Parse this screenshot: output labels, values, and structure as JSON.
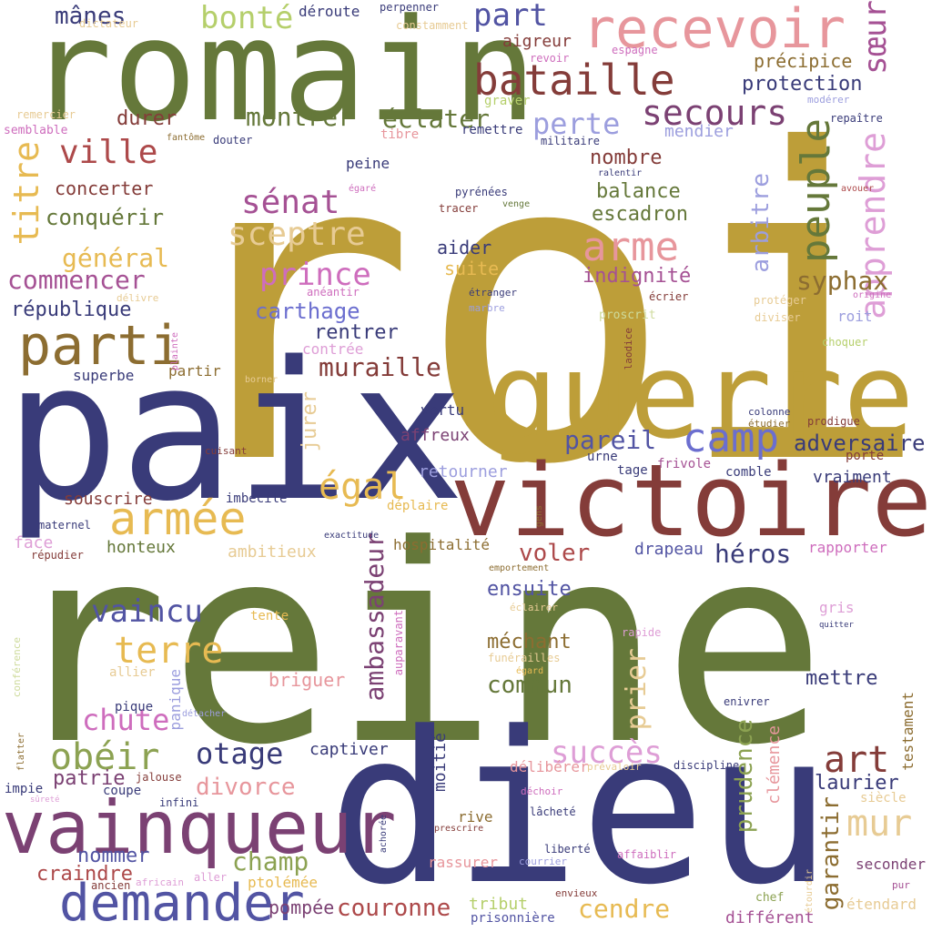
{
  "palette": {
    "olive_green": "#65783a",
    "mustard": "#bd9e39",
    "navy": "#393b79",
    "maroon": "#843c39",
    "indigo": "#5254a3",
    "periwinkle": "#6b6ecf",
    "lavender": "#9c9ede",
    "sand": "#e7cb94",
    "gold": "#e7ba52",
    "pea": "#8ca252",
    "lime": "#b5cf6b",
    "pale_lime": "#cedb9c",
    "brown": "#8c6d31",
    "red": "#ad494a",
    "rose": "#e7969c",
    "plum": "#7b4173",
    "magenta": "#a55194",
    "orchid": "#ce6dbd",
    "pink": "#de9ed6"
  },
  "words": [
    {
      "text": "roi",
      "color": "#bd9e39"
    },
    {
      "text": "reine",
      "color": "#65783a"
    },
    {
      "text": "paix",
      "color": "#393b79"
    },
    {
      "text": "dieu",
      "color": "#393b79"
    },
    {
      "text": "romain",
      "color": "#65783a"
    },
    {
      "text": "guerre",
      "color": "#bd9e39"
    },
    {
      "text": "victoire",
      "color": "#843c39"
    },
    {
      "text": "vainqueur",
      "color": "#7b4173"
    },
    {
      "text": "demander",
      "color": "#5254a3"
    },
    {
      "text": "recevoir",
      "color": "#e7969c"
    },
    {
      "text": "bataille",
      "color": "#843c39"
    },
    {
      "text": "parti",
      "color": "#8c6d31"
    },
    {
      "text": "armée",
      "color": "#e7ba52"
    },
    {
      "text": "camp",
      "color": "#6b6ecf"
    },
    {
      "text": "arme",
      "color": "#e7969c"
    },
    {
      "text": "peuple",
      "color": "#65783a"
    },
    {
      "text": "apprendre",
      "color": "#de9ed6"
    },
    {
      "text": "sœur",
      "color": "#a55194"
    },
    {
      "text": "secours",
      "color": "#7b4173"
    },
    {
      "text": "part",
      "color": "#5254a3"
    },
    {
      "text": "bonté",
      "color": "#b5cf6b"
    },
    {
      "text": "mânes",
      "color": "#393b79"
    },
    {
      "text": "ville",
      "color": "#ad494a"
    },
    {
      "text": "titre",
      "color": "#e7ba52"
    },
    {
      "text": "sénat",
      "color": "#a55194"
    },
    {
      "text": "sceptre",
      "color": "#e7cb94"
    },
    {
      "text": "prince",
      "color": "#ce6dbd"
    },
    {
      "text": "perte",
      "color": "#9c9ede"
    },
    {
      "text": "montrer",
      "color": "#65783a"
    },
    {
      "text": "éclater",
      "color": "#65783a"
    },
    {
      "text": "durer",
      "color": "#843c39"
    },
    {
      "text": "égal",
      "color": "#e7ba52"
    },
    {
      "text": "terre",
      "color": "#e7ba52"
    },
    {
      "text": "ambassadeur",
      "color": "#7b4173"
    },
    {
      "text": "obéir",
      "color": "#8ca252"
    },
    {
      "text": "otage",
      "color": "#393b79"
    },
    {
      "text": "art",
      "color": "#843c39"
    },
    {
      "text": "mur",
      "color": "#e7cb94"
    },
    {
      "text": "succès",
      "color": "#de9ed6"
    },
    {
      "text": "muraille",
      "color": "#843c39"
    },
    {
      "text": "pareil",
      "color": "#5254a3"
    },
    {
      "text": "adversaire",
      "color": "#393b79"
    },
    {
      "text": "syphax",
      "color": "#8c6d31"
    },
    {
      "text": "arbitre",
      "color": "#9c9ede"
    },
    {
      "text": "carthage",
      "color": "#6b6ecf"
    },
    {
      "text": "commencer",
      "color": "#a55194"
    },
    {
      "text": "général",
      "color": "#e7ba52"
    },
    {
      "text": "conquérir",
      "color": "#65783a"
    },
    {
      "text": "concerter",
      "color": "#843c39"
    },
    {
      "text": "république",
      "color": "#393b79"
    },
    {
      "text": "vaincu",
      "color": "#5254a3"
    },
    {
      "text": "chute",
      "color": "#ce6dbd"
    },
    {
      "text": "commun",
      "color": "#65783a"
    },
    {
      "text": "prier",
      "color": "#e7cb94"
    },
    {
      "text": "mettre",
      "color": "#393b79"
    },
    {
      "text": "couronne",
      "color": "#ad494a"
    },
    {
      "text": "cendre",
      "color": "#e7ba52"
    },
    {
      "text": "champ",
      "color": "#8ca252"
    },
    {
      "text": "héros",
      "color": "#393b79"
    },
    {
      "text": "voler",
      "color": "#ad494a"
    },
    {
      "text": "divorce",
      "color": "#e7969c"
    },
    {
      "text": "briguer",
      "color": "#e7969c"
    },
    {
      "text": "ensuite",
      "color": "#5254a3"
    },
    {
      "text": "méchant",
      "color": "#8c6d31"
    },
    {
      "text": "garantir",
      "color": "#8c6d31"
    },
    {
      "text": "prudence",
      "color": "#8ca252"
    },
    {
      "text": "patrie",
      "color": "#7b4173"
    },
    {
      "text": "laurier",
      "color": "#393b79"
    },
    {
      "text": "nommer",
      "color": "#5254a3"
    },
    {
      "text": "craindre",
      "color": "#ad494a"
    },
    {
      "text": "pompée",
      "color": "#7b4173"
    },
    {
      "text": "tribut",
      "color": "#b5cf6b"
    },
    {
      "text": "rentrer",
      "color": "#393b79"
    },
    {
      "text": "aider",
      "color": "#393b79"
    },
    {
      "text": "suite",
      "color": "#e7ba52"
    },
    {
      "text": "escadron",
      "color": "#65783a"
    },
    {
      "text": "balance",
      "color": "#65783a"
    },
    {
      "text": "nombre",
      "color": "#843c39"
    },
    {
      "text": "indignité",
      "color": "#a55194"
    },
    {
      "text": "protection",
      "color": "#393b79"
    },
    {
      "text": "précipice",
      "color": "#8c6d31"
    },
    {
      "text": "aigreur",
      "color": "#843c39"
    },
    {
      "text": "mendier",
      "color": "#9c9ede"
    },
    {
      "text": "jurer",
      "color": "#e7cb94"
    },
    {
      "text": "affreux",
      "color": "#7b4173"
    },
    {
      "text": "retourner",
      "color": "#9c9ede"
    },
    {
      "text": "vertu",
      "color": "#393b79"
    },
    {
      "text": "souscrire",
      "color": "#843c39"
    },
    {
      "text": "ambitieux",
      "color": "#e7cb94"
    },
    {
      "text": "honteux",
      "color": "#65783a"
    },
    {
      "text": "face",
      "color": "#de9ed6"
    },
    {
      "text": "superbe",
      "color": "#393b79"
    },
    {
      "text": "partir",
      "color": "#8c6d31"
    },
    {
      "text": "peine",
      "color": "#393b79"
    },
    {
      "text": "déroute",
      "color": "#393b79"
    },
    {
      "text": "imbécile",
      "color": "#393b79"
    },
    {
      "text": "hospitalité",
      "color": "#8c6d31"
    },
    {
      "text": "drapeau",
      "color": "#5254a3"
    },
    {
      "text": "rapporter",
      "color": "#ce6dbd"
    },
    {
      "text": "vraiment",
      "color": "#393b79"
    },
    {
      "text": "moitié",
      "color": "#393b79"
    },
    {
      "text": "captiver",
      "color": "#393b79"
    },
    {
      "text": "délibérer",
      "color": "#e7969c"
    },
    {
      "text": "rassurer",
      "color": "#e7969c"
    },
    {
      "text": "ptolémée",
      "color": "#e7ba52"
    },
    {
      "text": "rive",
      "color": "#8c6d31"
    },
    {
      "text": "différent",
      "color": "#a55194"
    },
    {
      "text": "clémence",
      "color": "#e7969c"
    },
    {
      "text": "testament",
      "color": "#8c6d31"
    },
    {
      "text": "siècle",
      "color": "#e7cb94"
    },
    {
      "text": "seconder",
      "color": "#7b4173"
    },
    {
      "text": "étendard",
      "color": "#e7cb94"
    },
    {
      "text": "prisonnière",
      "color": "#5254a3"
    },
    {
      "text": "contrée",
      "color": "#de9ed6"
    },
    {
      "text": "roit",
      "color": "#9c9ede"
    },
    {
      "text": "porte",
      "color": "#843c39"
    },
    {
      "text": "tage",
      "color": "#393b79"
    },
    {
      "text": "urne",
      "color": "#393b79"
    },
    {
      "text": "frivole",
      "color": "#a55194"
    },
    {
      "text": "comble",
      "color": "#393b79"
    },
    {
      "text": "gris",
      "color": "#de9ed6"
    },
    {
      "text": "tente",
      "color": "#e7ba52"
    },
    {
      "text": "allier",
      "color": "#e7cb94"
    },
    {
      "text": "pique",
      "color": "#393b79"
    },
    {
      "text": "panique",
      "color": "#9c9ede"
    },
    {
      "text": "coupe",
      "color": "#393b79"
    },
    {
      "text": "infini",
      "color": "#393b79"
    },
    {
      "text": "jalouse",
      "color": "#843c39"
    },
    {
      "text": "impie",
      "color": "#393b79"
    },
    {
      "text": "maternel",
      "color": "#393b79"
    },
    {
      "text": "répudier",
      "color": "#843c39"
    },
    {
      "text": "perpenner",
      "color": "#393b79"
    },
    {
      "text": "dictateur",
      "color": "#e7cb94"
    },
    {
      "text": "constamment",
      "color": "#e7cb94"
    },
    {
      "text": "revoir",
      "color": "#ce6dbd"
    },
    {
      "text": "espagne",
      "color": "#ce6dbd"
    },
    {
      "text": "graver",
      "color": "#b5cf6b"
    },
    {
      "text": "remettre",
      "color": "#393b79"
    },
    {
      "text": "militaire",
      "color": "#393b79"
    },
    {
      "text": "modérer",
      "color": "#9c9ede"
    },
    {
      "text": "repaître",
      "color": "#393b79"
    },
    {
      "text": "remercier",
      "color": "#e7cb94"
    },
    {
      "text": "semblable",
      "color": "#ce6dbd"
    },
    {
      "text": "fantôme",
      "color": "#8c6d31"
    },
    {
      "text": "douter",
      "color": "#393b79"
    },
    {
      "text": "tibre",
      "color": "#e7969c"
    },
    {
      "text": "ralentir",
      "color": "#393b79"
    },
    {
      "text": "égaré",
      "color": "#ce6dbd"
    },
    {
      "text": "pyrénées",
      "color": "#393b79"
    },
    {
      "text": "tracer",
      "color": "#843c39"
    },
    {
      "text": "venge",
      "color": "#65783a"
    },
    {
      "text": "avouer",
      "color": "#ad494a"
    },
    {
      "text": "délivre",
      "color": "#e7cb94"
    },
    {
      "text": "anéantir",
      "color": "#ce6dbd"
    },
    {
      "text": "étranger",
      "color": "#393b79"
    },
    {
      "text": "marbre",
      "color": "#9c9ede"
    },
    {
      "text": "protéger",
      "color": "#e7cb94"
    },
    {
      "text": "origine",
      "color": "#ce6dbd"
    },
    {
      "text": "écrier",
      "color": "#843c39"
    },
    {
      "text": "proscrit",
      "color": "#cedb9c"
    },
    {
      "text": "diviser",
      "color": "#e7cb94"
    },
    {
      "text": "choquer",
      "color": "#b5cf6b"
    },
    {
      "text": "plainte",
      "color": "#ce6dbd"
    },
    {
      "text": "borner",
      "color": "#e7cb94"
    },
    {
      "text": "laodice",
      "color": "#843c39"
    },
    {
      "text": "colonne",
      "color": "#393b79"
    },
    {
      "text": "étudier",
      "color": "#8c6d31"
    },
    {
      "text": "prodigue",
      "color": "#843c39"
    },
    {
      "text": "cuisant",
      "color": "#843c39"
    },
    {
      "text": "exactitude",
      "color": "#393b79"
    },
    {
      "text": "déplaire",
      "color": "#e7ba52"
    },
    {
      "text": "gens",
      "color": "#8c6d31"
    },
    {
      "text": "emportement",
      "color": "#8c6d31"
    },
    {
      "text": "auparavant",
      "color": "#ce6dbd"
    },
    {
      "text": "éclairer",
      "color": "#e7cb94"
    },
    {
      "text": "rapide",
      "color": "#de9ed6"
    },
    {
      "text": "quitter",
      "color": "#393b79"
    },
    {
      "text": "conférence",
      "color": "#cedb9c"
    },
    {
      "text": "funérailles",
      "color": "#e7cb94"
    },
    {
      "text": "égard",
      "color": "#e7ba52"
    },
    {
      "text": "enivrer",
      "color": "#393b79"
    },
    {
      "text": "détacher",
      "color": "#9c9ede"
    },
    {
      "text": "flatter",
      "color": "#8c6d31"
    },
    {
      "text": "discipline",
      "color": "#393b79"
    },
    {
      "text": "prévaloir",
      "color": "#e7cb94"
    },
    {
      "text": "déchoir",
      "color": "#ce6dbd"
    },
    {
      "text": "lâcheté",
      "color": "#393b79"
    },
    {
      "text": "sûreté",
      "color": "#de9ed6"
    },
    {
      "text": "achorée",
      "color": "#393b79"
    },
    {
      "text": "prescrire",
      "color": "#843c39"
    },
    {
      "text": "liberté",
      "color": "#393b79"
    },
    {
      "text": "courrier",
      "color": "#9c9ede"
    },
    {
      "text": "affaiblir",
      "color": "#ce6dbd"
    },
    {
      "text": "africain",
      "color": "#de9ed6"
    },
    {
      "text": "ancien",
      "color": "#843c39"
    },
    {
      "text": "aller",
      "color": "#de9ed6"
    },
    {
      "text": "envieux",
      "color": "#843c39"
    },
    {
      "text": "chef",
      "color": "#8ca252"
    },
    {
      "text": "étourdir",
      "color": "#e7cb94"
    },
    {
      "text": "pur",
      "color": "#a55194"
    }
  ]
}
